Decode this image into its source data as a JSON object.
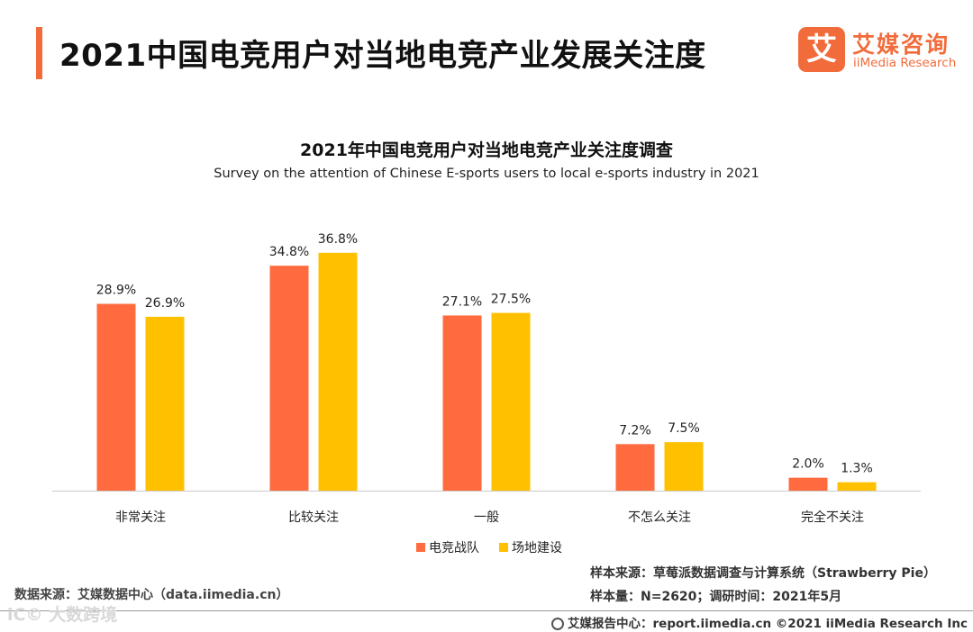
{
  "header": {
    "title": "2021中国电竞用户对当地电竞产业发展关注度",
    "logo_mark": "艾",
    "logo_cn": "艾媒咨询",
    "logo_en": "iiMedia Research"
  },
  "colors": {
    "accent": "#f26b3a",
    "series1": "#ff6b3f",
    "series2": "#ffc000"
  },
  "chart_data": {
    "type": "bar",
    "title": "2021年中国电竞用户对当地电竞产业关注度调查",
    "subtitle": "Survey on the attention of Chinese E-sports users to local e-sports industry in 2021",
    "categories": [
      "非常关注",
      "比较关注",
      "一般",
      "不怎么关注",
      "完全不关注"
    ],
    "series": [
      {
        "name": "电竞战队",
        "values": [
          28.9,
          34.8,
          27.1,
          7.2,
          2.0
        ],
        "labels": [
          "28.9%",
          "34.8%",
          "27.1%",
          "7.2%",
          "2.0%"
        ]
      },
      {
        "name": "场地建设",
        "values": [
          26.9,
          36.8,
          27.5,
          7.5,
          1.3
        ],
        "labels": [
          "26.9%",
          "36.8%",
          "27.5%",
          "7.5%",
          "1.3%"
        ]
      }
    ],
    "unit": "%",
    "ylim": [
      0,
      40
    ],
    "legend_position": "bottom-center",
    "grid": false
  },
  "notes": {
    "data_source": "数据来源：艾媒数据中心（data.iimedia.cn）",
    "sample_source": "样本来源：草莓派数据调查与计算系统（Strawberry Pie）",
    "sample_size": "样本量：N=2620；调研时间：2021年5月"
  },
  "footer": {
    "text": "艾媒报告中心：report.iimedia.cn ©2021  iiMedia Research  Inc"
  },
  "watermark": "iC© 大数跨境"
}
